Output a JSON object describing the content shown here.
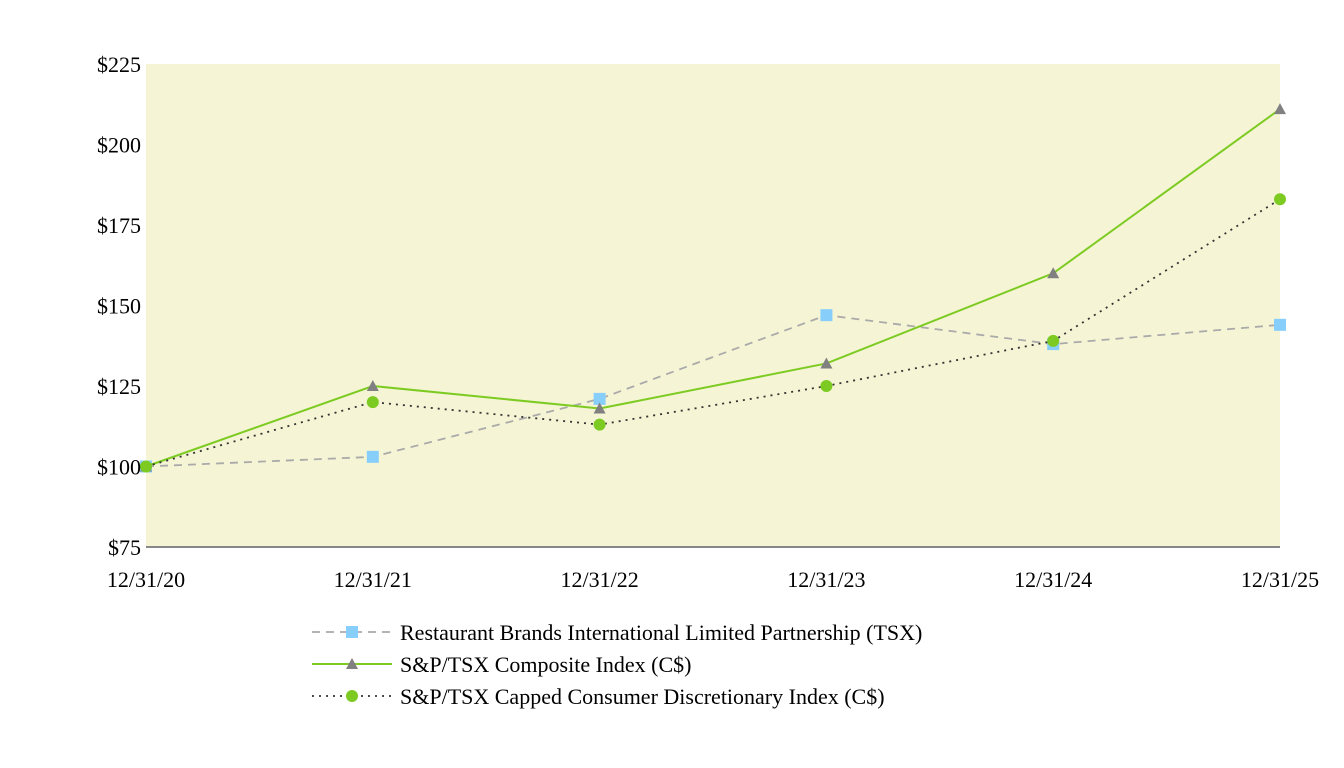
{
  "chart_data": {
    "type": "line",
    "categories": [
      "12/31/20",
      "12/31/21",
      "12/31/22",
      "12/31/23",
      "12/31/24",
      "12/31/25"
    ],
    "ylim": [
      75,
      225
    ],
    "yticks": [
      75,
      100,
      125,
      150,
      175,
      200,
      225
    ],
    "ytick_labels": [
      "$75",
      "$100",
      "$125",
      "$150",
      "$175",
      "$200",
      "$225"
    ],
    "plot_background": "#F5F5D5",
    "axis_color": "#888888",
    "legend_position": "bottom",
    "grid": false,
    "series": [
      {
        "name": "Restaurant Brands International Limited Partnership (TSX)",
        "values": [
          100,
          103,
          121,
          147,
          138,
          144
        ],
        "line_color": "#AAAAAA",
        "marker_color": "#87CEFA",
        "line_style": "dashed",
        "marker": "square"
      },
      {
        "name": "S&P/TSX Composite Index (C$)",
        "values": [
          100,
          125,
          118,
          132,
          160,
          211
        ],
        "line_color": "#7DCB22",
        "marker_color": "#808080",
        "line_style": "solid",
        "marker": "triangle"
      },
      {
        "name": "S&P/TSX Capped Consumer Discretionary Index (C$)",
        "values": [
          100,
          120,
          113,
          125,
          139,
          183
        ],
        "line_color": "#333333",
        "marker_color": "#7DCB22",
        "line_style": "dotted",
        "marker": "circle"
      }
    ]
  }
}
